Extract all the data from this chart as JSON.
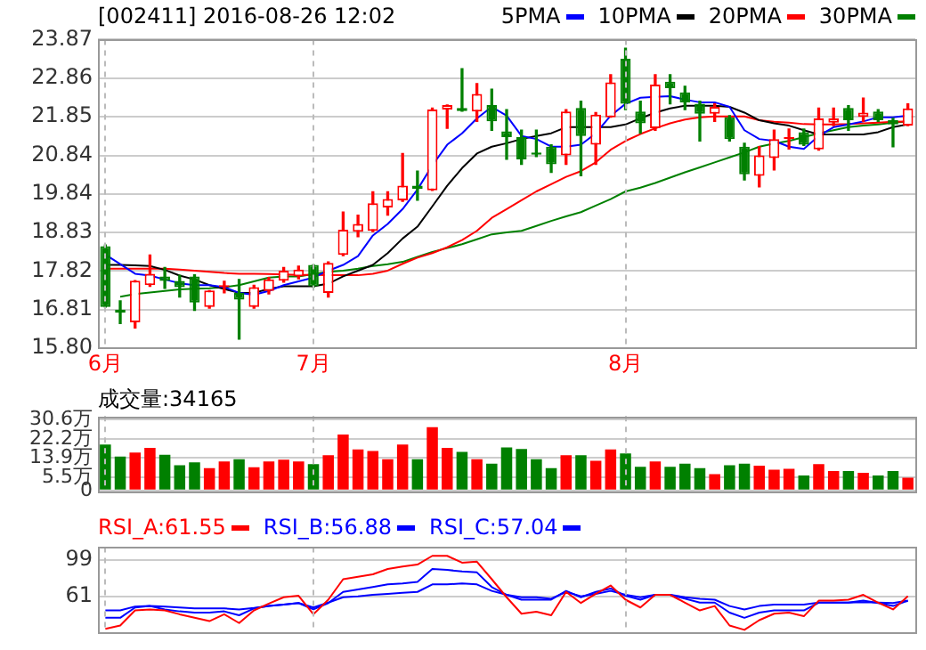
{
  "chart_data": [
    {
      "type": "candlestick",
      "title": "[002411] 2016-08-26 12:02",
      "categories": [
        "6月",
        null,
        null,
        null,
        null,
        null,
        null,
        null,
        null,
        null,
        null,
        null,
        null,
        null,
        "7月",
        null,
        null,
        null,
        null,
        null,
        null,
        null,
        null,
        null,
        null,
        null,
        null,
        null,
        null,
        null,
        null,
        null,
        null,
        null,
        null,
        "8月",
        null,
        null,
        null,
        null,
        null,
        null,
        null,
        null,
        null,
        null,
        null,
        null,
        null,
        null,
        null,
        null,
        null,
        null,
        null
      ],
      "ohlc": [
        [
          18.47,
          18.5,
          16.88,
          16.88
        ],
        [
          16.81,
          17.04,
          16.45,
          16.73
        ],
        [
          16.48,
          17.57,
          16.33,
          17.57
        ],
        [
          17.45,
          18.24,
          17.42,
          17.75
        ],
        [
          17.68,
          17.91,
          17.37,
          17.56
        ],
        [
          17.56,
          17.71,
          17.14,
          17.4
        ],
        [
          17.68,
          17.72,
          16.79,
          17.0
        ],
        [
          16.88,
          17.31,
          16.85,
          17.31
        ],
        [
          17.4,
          17.55,
          17.25,
          17.45
        ],
        [
          17.25,
          17.6,
          16.04,
          17.07
        ],
        [
          16.88,
          17.45,
          16.85,
          17.4
        ],
        [
          17.3,
          17.65,
          17.22,
          17.6
        ],
        [
          17.57,
          17.91,
          17.53,
          17.83
        ],
        [
          17.68,
          17.95,
          17.62,
          17.86
        ],
        [
          17.98,
          17.98,
          17.4,
          17.42
        ],
        [
          17.25,
          18.06,
          17.14,
          18.03
        ],
        [
          18.24,
          19.36,
          18.22,
          18.9
        ],
        [
          18.85,
          19.28,
          18.72,
          19.05
        ],
        [
          18.87,
          19.89,
          18.85,
          19.59
        ],
        [
          19.48,
          19.89,
          19.28,
          19.7
        ],
        [
          19.67,
          20.89,
          19.64,
          20.05
        ],
        [
          20.05,
          20.43,
          19.67,
          19.97
        ],
        [
          19.93,
          22.08,
          19.93,
          22.04
        ],
        [
          22.04,
          22.16,
          21.55,
          22.16
        ],
        [
          22.08,
          23.11,
          22.0,
          22.0
        ],
        [
          21.99,
          22.72,
          21.73,
          22.45
        ],
        [
          22.16,
          22.57,
          21.5,
          21.73
        ],
        [
          21.47,
          22.04,
          20.74,
          21.32
        ],
        [
          21.32,
          21.5,
          20.61,
          20.74
        ],
        [
          20.92,
          21.5,
          20.81,
          20.86
        ],
        [
          21.07,
          21.12,
          20.4,
          20.61
        ],
        [
          20.84,
          22.04,
          20.61,
          21.99
        ],
        [
          22.08,
          22.26,
          20.31,
          21.35
        ],
        [
          21.12,
          21.96,
          20.61,
          21.91
        ],
        [
          21.84,
          22.95,
          21.84,
          22.75
        ],
        [
          23.37,
          23.64,
          22.04,
          22.19
        ],
        [
          21.99,
          22.26,
          21.42,
          21.68
        ],
        [
          21.55,
          22.95,
          21.5,
          22.69
        ],
        [
          22.77,
          22.95,
          22.19,
          22.6
        ],
        [
          22.49,
          22.65,
          22.04,
          22.23
        ],
        [
          22.19,
          22.26,
          21.22,
          21.93
        ],
        [
          21.93,
          22.19,
          21.73,
          22.11
        ],
        [
          21.84,
          21.88,
          21.22,
          21.27
        ],
        [
          21.07,
          21.16,
          20.2,
          20.35
        ],
        [
          20.31,
          21.07,
          20.02,
          20.84
        ],
        [
          20.77,
          21.5,
          20.46,
          21.27
        ],
        [
          21.27,
          21.53,
          21.01,
          21.32
        ],
        [
          21.45,
          21.53,
          21.1,
          21.12
        ],
        [
          21.0,
          22.08,
          20.98,
          21.81
        ],
        [
          21.7,
          22.08,
          21.62,
          21.81
        ],
        [
          22.08,
          22.14,
          21.5,
          21.76
        ],
        [
          21.85,
          22.34,
          21.73,
          21.96
        ],
        [
          21.99,
          22.04,
          21.73,
          21.76
        ],
        [
          21.76,
          21.81,
          21.07,
          21.65
        ],
        [
          21.62,
          22.19,
          21.62,
          22.07
        ]
      ],
      "colors": [
        "#008000",
        "#008000",
        "#ff0000",
        "#ff0000",
        "#008000",
        "#008000",
        "#008000",
        "#ff0000",
        "#ff0000",
        "#008000",
        "#ff0000",
        "#ff0000",
        "#ff0000",
        "#ff0000",
        "#008000",
        "#ff0000",
        "#ff0000",
        "#ff0000",
        "#ff0000",
        "#ff0000",
        "#ff0000",
        "#008000",
        "#ff0000",
        "#ff0000",
        "#008000",
        "#ff0000",
        "#008000",
        "#008000",
        "#008000",
        "#008000",
        "#008000",
        "#ff0000",
        "#008000",
        "#ff0000",
        "#ff0000",
        "#008000",
        "#008000",
        "#ff0000",
        "#008000",
        "#008000",
        "#008000",
        "#ff0000",
        "#008000",
        "#008000",
        "#ff0000",
        "#ff0000",
        "#ff0000",
        "#008000",
        "#ff0000",
        "#ff0000",
        "#008000",
        "#ff0000",
        "#008000",
        "#008000",
        "#ff0000"
      ],
      "series": [
        {
          "name": "5PMA",
          "type": "line",
          "color": "#0000ff",
          "values": [
            18.25,
            18.0,
            17.75,
            17.7,
            17.6,
            17.5,
            17.45,
            17.45,
            17.4,
            17.25,
            17.2,
            17.3,
            17.45,
            17.55,
            17.65,
            17.83,
            17.98,
            18.21,
            18.75,
            19.05,
            19.44,
            19.95,
            20.58,
            21.12,
            21.42,
            21.81,
            22.11,
            21.88,
            21.35,
            21.27,
            21.07,
            21.07,
            21.12,
            21.42,
            21.88,
            22.19,
            22.35,
            22.37,
            22.39,
            22.3,
            22.23,
            22.23,
            22.11,
            21.5,
            21.27,
            21.22,
            21.07,
            21.01,
            21.35,
            21.58,
            21.65,
            21.73,
            21.84,
            21.84,
            21.88
          ]
        },
        {
          "name": "10PMA",
          "type": "line",
          "color": "#000000",
          "values": [
            17.98,
            17.98,
            17.97,
            17.95,
            17.85,
            17.7,
            17.6,
            17.45,
            17.35,
            17.25,
            17.25,
            17.35,
            17.42,
            17.42,
            17.42,
            17.49,
            17.68,
            17.83,
            17.98,
            18.29,
            18.67,
            18.98,
            19.51,
            20.05,
            20.51,
            20.89,
            21.07,
            21.16,
            21.27,
            21.35,
            21.42,
            21.58,
            21.58,
            21.58,
            21.58,
            21.65,
            21.81,
            21.96,
            22.07,
            22.14,
            22.14,
            22.14,
            22.11,
            21.96,
            21.76,
            21.68,
            21.62,
            21.5,
            21.39,
            21.39,
            21.39,
            21.39,
            21.45,
            21.58,
            21.65
          ]
        },
        {
          "name": "20PMA",
          "type": "line",
          "color": "#ff0000",
          "values": [
            17.88,
            17.88,
            17.88,
            17.88,
            17.88,
            17.86,
            17.83,
            17.8,
            17.77,
            17.75,
            17.75,
            17.74,
            17.73,
            17.72,
            17.72,
            17.71,
            17.71,
            17.71,
            17.75,
            17.83,
            18.01,
            18.17,
            18.29,
            18.44,
            18.63,
            18.87,
            19.21,
            19.44,
            19.67,
            19.9,
            20.09,
            20.28,
            20.43,
            20.66,
            20.99,
            21.22,
            21.4,
            21.55,
            21.68,
            21.78,
            21.84,
            21.86,
            21.86,
            21.86,
            21.76,
            21.72,
            21.7,
            21.66,
            21.65,
            21.65,
            21.66,
            21.68,
            21.7,
            21.72,
            21.73
          ]
        },
        {
          "name": "30PMA",
          "type": "line",
          "color": "#008000",
          "values": [
            null,
            17.15,
            17.22,
            17.26,
            17.3,
            17.34,
            17.36,
            17.37,
            17.4,
            17.45,
            17.55,
            17.65,
            17.68,
            17.68,
            17.74,
            17.8,
            17.83,
            17.88,
            17.95,
            18.0,
            18.06,
            18.19,
            18.32,
            18.42,
            18.52,
            18.65,
            18.78,
            18.83,
            18.87,
            19.0,
            19.13,
            19.25,
            19.36,
            19.53,
            19.7,
            19.9,
            20.0,
            20.12,
            20.26,
            20.4,
            20.53,
            20.66,
            20.79,
            20.92,
            21.07,
            21.15,
            21.22,
            21.32,
            21.42,
            21.5,
            21.58,
            21.62,
            21.65,
            21.7,
            21.73
          ]
        }
      ],
      "ylim": [
        15.8,
        23.87
      ],
      "yticks": [
        {
          "value": 15.8,
          "label": "15.80"
        },
        16.81,
        17.82,
        18.83,
        19.84,
        20.84,
        21.85,
        22.86,
        23.87
      ],
      "grid": true,
      "legend": "top right"
    },
    {
      "type": "bar",
      "title": "成交量:34165",
      "categories": [
        null,
        null,
        null,
        null,
        null,
        null,
        null,
        null,
        null,
        null,
        null,
        null,
        null,
        null,
        null,
        null,
        null,
        null,
        null,
        null,
        null,
        null,
        null,
        null,
        null,
        null,
        null,
        null,
        null,
        null,
        null,
        null,
        null,
        null,
        null,
        null,
        null,
        null,
        null,
        null,
        null,
        null,
        null,
        null,
        null,
        null,
        null,
        null,
        null,
        null,
        null,
        null,
        null,
        null,
        null
      ],
      "values": [
        19.7,
        14.6,
        16.3,
        18.3,
        15.3,
        10.8,
        12.1,
        9.6,
        12.5,
        13.4,
        10.0,
        12.5,
        13.2,
        12.5,
        11.3,
        15.1,
        24.0,
        17.6,
        17.0,
        13.4,
        19.7,
        13.4,
        27.2,
        18.3,
        16.6,
        13.4,
        11.5,
        18.5,
        17.8,
        13.4,
        9.6,
        15.1,
        15.1,
        12.7,
        17.6,
        15.9,
        10.2,
        12.5,
        10.2,
        11.5,
        9.6,
        7.0,
        10.8,
        11.5,
        10.6,
        8.9,
        9.3,
        6.4,
        11.3,
        8.3,
        8.3,
        7.6,
        6.4,
        8.3,
        5.5
      ],
      "colors": [
        "#008000",
        "#008000",
        "#ff0000",
        "#ff0000",
        "#008000",
        "#008000",
        "#008000",
        "#ff0000",
        "#ff0000",
        "#008000",
        "#ff0000",
        "#ff0000",
        "#ff0000",
        "#ff0000",
        "#008000",
        "#ff0000",
        "#ff0000",
        "#ff0000",
        "#ff0000",
        "#ff0000",
        "#ff0000",
        "#008000",
        "#ff0000",
        "#ff0000",
        "#008000",
        "#ff0000",
        "#008000",
        "#008000",
        "#008000",
        "#008000",
        "#008000",
        "#ff0000",
        "#008000",
        "#ff0000",
        "#ff0000",
        "#008000",
        "#008000",
        "#ff0000",
        "#008000",
        "#008000",
        "#008000",
        "#ff0000",
        "#008000",
        "#008000",
        "#ff0000",
        "#ff0000",
        "#ff0000",
        "#008000",
        "#ff0000",
        "#ff0000",
        "#008000",
        "#ff0000",
        "#008000",
        "#008000",
        "#ff0000"
      ],
      "ylim": [
        0,
        32
      ],
      "yticks": [
        0,
        {
          "value": 5.5,
          "label": "5.5万"
        },
        {
          "value": 13.9,
          "label": "13.9万"
        },
        {
          "value": 22.2,
          "label": "22.2万"
        },
        {
          "value": 30.6,
          "label": "30.6万"
        }
      ],
      "grid": true,
      "tick_labels": "y"
    },
    {
      "type": "line",
      "categories": [
        null,
        null,
        null,
        null,
        null,
        null,
        null,
        null,
        null,
        null,
        null,
        null,
        null,
        null,
        null,
        null,
        null,
        null,
        null,
        null,
        null,
        null,
        null,
        null,
        null,
        null,
        null,
        null,
        null,
        null,
        null,
        null,
        null,
        null,
        null,
        null,
        null,
        null,
        null,
        null,
        null,
        null,
        null,
        null,
        null,
        null,
        null,
        null,
        null,
        null,
        null,
        null,
        null,
        null,
        null
      ],
      "series": [
        {
          "name": "RSI_A:61.55",
          "color": "#ff0000",
          "values": [
            28,
            31.5,
            47,
            48,
            47,
            43,
            39.5,
            36,
            43,
            34,
            47,
            54,
            60.5,
            62,
            43,
            58,
            79,
            81.5,
            84,
            89.5,
            92,
            94,
            103,
            103,
            96,
            97,
            79,
            60.5,
            43.6,
            45.7,
            42,
            66,
            54.6,
            64,
            72.6,
            58,
            50,
            63,
            63,
            55,
            47,
            51.5,
            31.5,
            27,
            37,
            43.6,
            44.7,
            41,
            57,
            57,
            58,
            63,
            55,
            48,
            61.55
          ]
        },
        {
          "name": "RSI_B:56.88",
          "color": "#0000ff",
          "values": [
            39.4,
            39.4,
            50,
            51.5,
            48,
            46,
            44.7,
            44.7,
            46,
            42,
            49,
            51.5,
            53,
            54.6,
            48,
            54.6,
            66,
            68.4,
            71,
            73.7,
            74.7,
            76.3,
            89.5,
            88.5,
            87,
            86,
            71,
            63,
            58,
            58,
            58,
            67,
            60.5,
            66,
            69.5,
            62,
            58,
            63,
            63,
            59,
            55,
            55,
            44.7,
            39.4,
            44.7,
            47,
            47,
            47,
            55,
            55,
            55,
            57,
            54.6,
            51.5,
            56.88
          ]
        },
        {
          "name": "RSI_C:57.04",
          "color": "#0000ff",
          "values": [
            47,
            47,
            51,
            51.5,
            51,
            50,
            49,
            49,
            49,
            48,
            49.5,
            51.5,
            53,
            54.6,
            50,
            55,
            60.5,
            61.5,
            63,
            64,
            65,
            66,
            73.7,
            73.7,
            74.7,
            73.7,
            67,
            63,
            60.5,
            60.5,
            59,
            66,
            61.5,
            64,
            67,
            63,
            60.5,
            63,
            63,
            60.5,
            59,
            58,
            51.5,
            48,
            51.5,
            53,
            53,
            53,
            55,
            55,
            55,
            55.5,
            55,
            54.6,
            57.04
          ]
        }
      ],
      "ylim": [
        25,
        112
      ],
      "yticks": [
        61,
        99
      ],
      "grid": true,
      "legend": "top left",
      "tick_labels": "y"
    }
  ]
}
